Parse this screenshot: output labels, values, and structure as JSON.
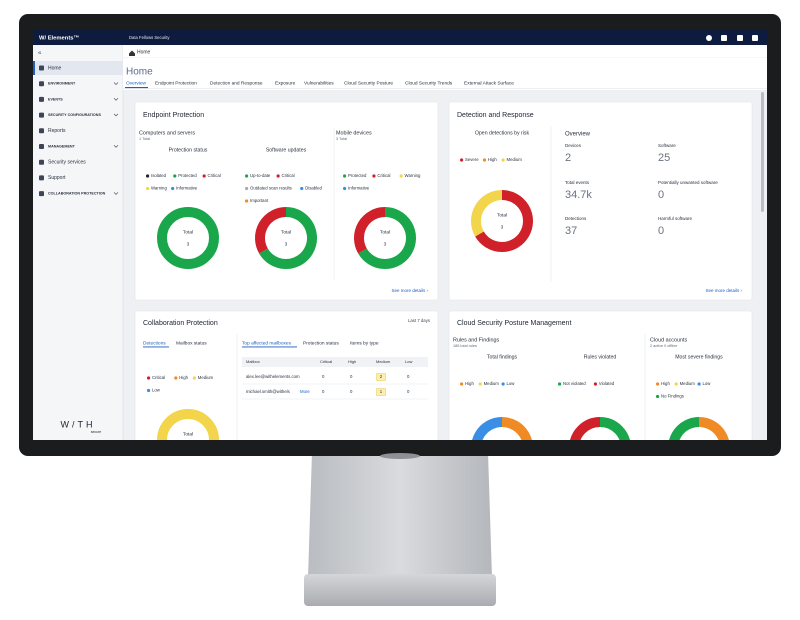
{
  "app": {
    "brand": "W/ Elements™",
    "org": "Data Fellows Security"
  },
  "breadcrumb": "Home",
  "sidebar": {
    "collapse": "«",
    "items": [
      "Home",
      "ENVIRONMENT",
      "EVENTS",
      "SECURITY CONFIGURATIONS",
      "Reports",
      "MANAGEMENT",
      "Security services",
      "Support",
      "COLLABORATION PROTECTION"
    ],
    "logo": "W/TH",
    "logo_sub": "secure"
  },
  "page_title": "Home",
  "tabs": [
    "Overview",
    "Endpoint Protection",
    "Detection and Response",
    "Exposure",
    "Vulnerabilities",
    "Cloud Security Posture",
    "Cloud Security Trends",
    "External Attack Surface"
  ],
  "endpoint_protection": {
    "title": "Endpoint Protection",
    "computers": {
      "title": "Computers and servers",
      "subtitle": "1 Total"
    },
    "mobile": {
      "title": "Mobile devices",
      "subtitle": "3 Total"
    },
    "charts": [
      {
        "title": "Protection status",
        "legend": [
          "Isolated",
          "Protected",
          "Critical",
          "Warning",
          "Informative"
        ],
        "colors": [
          "#222222",
          "#1aa64a",
          "#d0202a",
          "#f2d54a",
          "#3a8ee6"
        ],
        "values": [
          0,
          3,
          0,
          0,
          0
        ],
        "center_label": "Total",
        "center_value": 3
      },
      {
        "title": "Software updates",
        "legend": [
          "Up-to-date",
          "Critical",
          "Outdated scan results",
          "Disabled",
          "Important"
        ],
        "colors": [
          "#1aa64a",
          "#d0202a",
          "#aaaaaa",
          "#3a8ee6",
          "#f08a24"
        ],
        "values": [
          2,
          1,
          0,
          0,
          0
        ],
        "center_label": "Total",
        "center_value": 3
      },
      {
        "legend": [
          "Protected",
          "Critical",
          "Warning",
          "Informative"
        ],
        "colors": [
          "#1aa64a",
          "#d0202a",
          "#f2d54a",
          "#3a8ee6"
        ],
        "values": [
          2,
          1,
          0,
          0
        ],
        "center_label": "Total",
        "center_value": 3
      }
    ],
    "link": "See more details ›"
  },
  "detection_response": {
    "title": "Detection and Response",
    "chart": {
      "title": "Open detections by risk",
      "legend": [
        "Severe",
        "High",
        "Medium"
      ],
      "colors": [
        "#d0202a",
        "#f08a24",
        "#f2d54a"
      ],
      "values": [
        2,
        0,
        1
      ],
      "center_label": "Total",
      "center_value": 3
    },
    "overview_title": "Overview",
    "stats": [
      {
        "label": "Devices",
        "value": 2
      },
      {
        "label": "Software",
        "value": 25
      },
      {
        "label": "Total events",
        "value": "34.7k"
      },
      {
        "label": "Potentially unwanted software",
        "value": 0
      },
      {
        "label": "Detections",
        "value": 37
      },
      {
        "label": "Harmful software",
        "value": 0
      }
    ],
    "link": "See more details ›"
  },
  "collaboration_protection": {
    "title": "Collaboration Protection",
    "period": "Last 7 days",
    "tabs": [
      "Detections",
      "Mailbox status"
    ],
    "chart": {
      "legend": [
        "Critical",
        "High",
        "Medium",
        "Low"
      ],
      "colors": [
        "#d0202a",
        "#f08a24",
        "#f2d54a",
        "#3a8ee6"
      ],
      "values": [
        0,
        0,
        3,
        0
      ],
      "center_label": "Total"
    },
    "table_tabs": [
      "Top affected mailboxes",
      "Protection status",
      "Items by type"
    ],
    "table": {
      "header": [
        "Mailbox",
        "Critical",
        "High",
        "Medium",
        "Low"
      ],
      "rows": [
        [
          "alex.lee@withelements.com",
          0,
          0,
          2,
          0
        ],
        [
          "michael.smith@withels",
          0,
          0,
          1,
          0
        ]
      ],
      "more": "More"
    }
  },
  "cloud_security": {
    "title": "Cloud Security Posture Management",
    "rules": {
      "title": "Rules and Findings",
      "subtitle": "185 total rules"
    },
    "accounts": {
      "title": "Cloud accounts",
      "subtitle": "2 active 0 offline"
    },
    "charts": [
      {
        "title": "Total findings",
        "legend": [
          "High",
          "Medium",
          "Low"
        ],
        "colors": [
          "#f08a24",
          "#f2d54a",
          "#3a8ee6"
        ],
        "values": [
          1,
          1,
          1
        ],
        "center_label": "Total"
      },
      {
        "title": "Rules violated",
        "legend": [
          "Not violated",
          "Violated"
        ],
        "colors": [
          "#1aa64a",
          "#d0202a"
        ],
        "values": [
          1,
          1
        ],
        "center_label": "Total"
      },
      {
        "title": "Most severe findings",
        "legend": [
          "High",
          "Medium",
          "Low",
          "No Findings"
        ],
        "colors": [
          "#f08a24",
          "#f2d54a",
          "#3a8ee6",
          "#1aa64a"
        ],
        "values": [
          1,
          0,
          0,
          2
        ],
        "center_label": "Total"
      }
    ]
  }
}
